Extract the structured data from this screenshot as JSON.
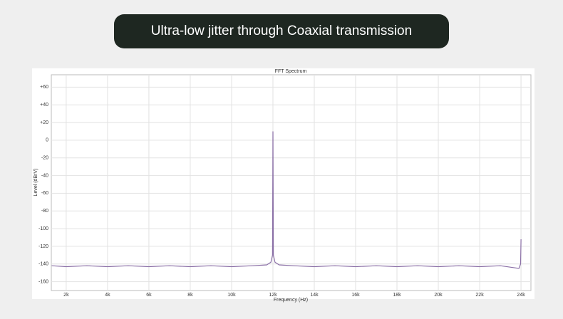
{
  "header": {
    "title": "Ultra-low jitter through Coaxial transmission"
  },
  "chart_data": {
    "type": "line",
    "title": "FFT Spectrum",
    "x_label": "Frequency (Hz)",
    "y_label": "Level (dBrV)",
    "x": [
      1300,
      2000,
      3000,
      4000,
      5000,
      6000,
      7000,
      8000,
      9000,
      10000,
      11000,
      11700,
      11900,
      11980,
      12000,
      12020,
      12100,
      12300,
      13000,
      14000,
      15000,
      16000,
      17000,
      18000,
      19000,
      20000,
      21000,
      22000,
      23000,
      23600,
      23900,
      23980,
      24000
    ],
    "values": [
      -142,
      -143,
      -142,
      -143,
      -142,
      -143,
      -142,
      -143,
      -142,
      -143,
      -142,
      -141,
      -138,
      -130,
      10,
      -130,
      -138,
      -141,
      -142,
      -143,
      -142,
      -143,
      -142,
      -143,
      -142,
      -143,
      -142,
      -143,
      -142,
      -144,
      -145,
      -140,
      -112
    ],
    "color": "#8a6fa6",
    "xlim": [
      1280,
      24480
    ],
    "ylim": [
      -170,
      74
    ],
    "xticks": [
      {
        "value": 2000,
        "label": "2k"
      },
      {
        "value": 4000,
        "label": "4k"
      },
      {
        "value": 6000,
        "label": "6k"
      },
      {
        "value": 8000,
        "label": "8k"
      },
      {
        "value": 10000,
        "label": "10k"
      },
      {
        "value": 12000,
        "label": "12k"
      },
      {
        "value": 14000,
        "label": "14k"
      },
      {
        "value": 16000,
        "label": "16k"
      },
      {
        "value": 18000,
        "label": "18k"
      },
      {
        "value": 20000,
        "label": "20k"
      },
      {
        "value": 22000,
        "label": "22k"
      },
      {
        "value": 24000,
        "label": "24k"
      }
    ],
    "yticks": [
      {
        "value": 60,
        "label": "+60"
      },
      {
        "value": 40,
        "label": "+40"
      },
      {
        "value": 20,
        "label": "+20"
      },
      0,
      -20,
      -40,
      -60,
      -80,
      -100,
      -120,
      -140,
      -160
    ],
    "grid": true
  }
}
